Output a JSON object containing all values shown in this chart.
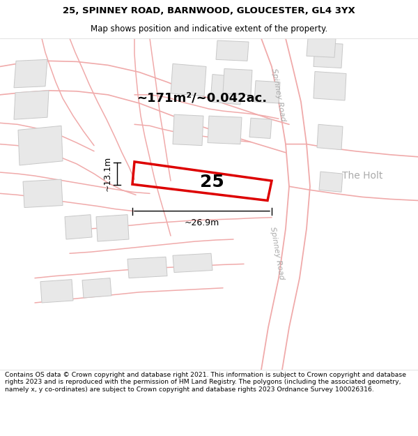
{
  "title_line1": "25, SPINNEY ROAD, BARNWOOD, GLOUCESTER, GL4 3YX",
  "title_line2": "Map shows position and indicative extent of the property.",
  "footer_text": "Contains OS data © Crown copyright and database right 2021. This information is subject to Crown copyright and database rights 2023 and is reproduced with the permission of HM Land Registry. The polygons (including the associated geometry, namely x, y co-ordinates) are subject to Crown copyright and database rights 2023 Ordnance Survey 100026316.",
  "area_label": "~171m²/~0.042ac.",
  "property_number": "25",
  "width_label": "~26.9m",
  "height_label": "~13.1m",
  "road_label_upper": "Spinney Road",
  "road_label_lower": "Spinney Road",
  "holt_label": "The Holt",
  "map_bg": "#f8f8f8",
  "building_fill": "#e8e8e8",
  "building_edge": "#c8c8c8",
  "road_color": "#f0aaaa",
  "property_color": "#dd0000",
  "title_fontsize": 9.5,
  "subtitle_fontsize": 8.5,
  "footer_fontsize": 6.7
}
